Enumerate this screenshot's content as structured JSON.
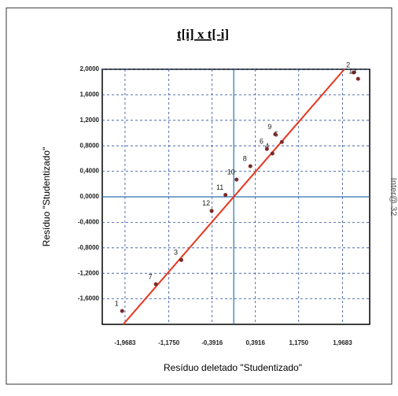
{
  "chart_data": {
    "type": "scatter",
    "title": "t[i] x t[-i]",
    "xlabel": "Resíduo deletado \"Studentizado\"",
    "ylabel": "Resíduo \"Studentizado\"",
    "side_text": "Inter@ 32",
    "point_labels": [
      "1",
      "2",
      "3",
      "4",
      "5",
      "6",
      "7",
      "8",
      "9",
      "10",
      "11",
      "12",
      "13"
    ],
    "x": [
      -2.02,
      2.17,
      -0.95,
      0.7,
      0.87,
      0.6,
      -1.41,
      0.3,
      0.75,
      0.05,
      -0.15,
      -0.4,
      2.25
    ],
    "values": [
      -1.79,
      1.95,
      -0.99,
      0.68,
      0.86,
      0.75,
      -1.37,
      0.48,
      0.98,
      0.27,
      0.03,
      -0.22,
      1.85
    ],
    "color": "#7a2a2a",
    "line_color": "#e8351f",
    "axis_color": "#2a6fb0",
    "grid": true,
    "xlim": [
      -2.38,
      2.46
    ],
    "ylim": [
      -2.0,
      2.0
    ],
    "xticks": [
      {
        "value": -1.9683,
        "label": "-1,9683"
      },
      {
        "value": -1.175,
        "label": "-1,1750"
      },
      {
        "value": -0.3916,
        "label": "-0,3916"
      },
      {
        "value": 0.3916,
        "label": "0,3916"
      },
      {
        "value": 1.175,
        "label": "1,1750"
      },
      {
        "value": 1.9683,
        "label": "1,9683"
      }
    ],
    "yticks": [
      {
        "value": 2.0,
        "label": "2,0000"
      },
      {
        "value": 1.6,
        "label": "1,6000"
      },
      {
        "value": 1.2,
        "label": "1,2000"
      },
      {
        "value": 0.8,
        "label": "0,8000"
      },
      {
        "value": 0.4,
        "label": "0,4000"
      },
      {
        "value": 0.0,
        "label": "0,0000"
      },
      {
        "value": -0.4,
        "label": "-0,4000"
      },
      {
        "value": -0.8,
        "label": "-0,8000"
      },
      {
        "value": -1.2,
        "label": "-1,2000"
      },
      {
        "value": -1.6,
        "label": "-1,6000"
      }
    ]
  }
}
